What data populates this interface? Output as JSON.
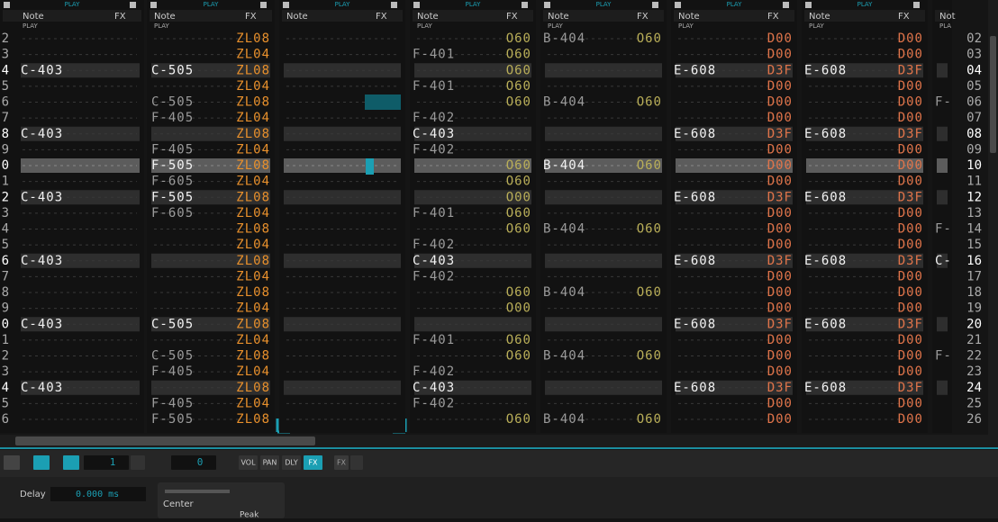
{
  "tracks": [
    {
      "play": "PLAY",
      "note": "Note",
      "fx": "FX",
      "sub": "PLAY"
    },
    {
      "play": "PLAY",
      "note": "Note",
      "fx": "FX",
      "sub": "PLAY"
    },
    {
      "play": "PLAY",
      "note": "Note",
      "fx": "FX"
    },
    {
      "play": "PLAY",
      "note": "Note",
      "fx": "FX",
      "sub": "PLAY"
    },
    {
      "play": "PLAY",
      "note": "Note",
      "fx": "FX",
      "sub": "PLAY"
    },
    {
      "play": "PLAY",
      "note": "Note",
      "fx": "FX",
      "sub": "PLAY"
    },
    {
      "play": "PLAY",
      "note": "Note",
      "fx": "FX",
      "sub": "PLAY"
    },
    {
      "note": "Not",
      "sub": "PLA"
    }
  ],
  "rows": [
    {
      "cut": "2",
      "num": "02",
      "cells": [
        null,
        null,
        "ZL08",
        null,
        "O60",
        "B-404",
        "O60",
        null,
        "D00",
        null,
        "D00",
        null
      ]
    },
    {
      "cut": "3",
      "num": "03",
      "cells": [
        null,
        null,
        "ZL04",
        "F-401",
        "O60",
        null,
        null,
        null,
        "D00",
        null,
        "D00",
        null
      ]
    },
    {
      "cut": "4",
      "num": "04",
      "cells": [
        "C-403",
        "C-505",
        "ZL08",
        null,
        "O60",
        null,
        null,
        "E-608",
        "D3F",
        "E-608",
        "D3F",
        null
      ]
    },
    {
      "cut": "5",
      "num": "05",
      "cells": [
        null,
        null,
        "ZL04",
        "F-401",
        "O60",
        null,
        null,
        null,
        "D00",
        null,
        "D00",
        null
      ]
    },
    {
      "cut": "6",
      "num": "06",
      "cells": [
        null,
        "C-505",
        "ZL08",
        null,
        "O60",
        "B-404",
        "O60",
        null,
        "D00",
        null,
        "D00",
        "F-"
      ]
    },
    {
      "cut": "7",
      "num": "07",
      "cells": [
        null,
        "F-405",
        "ZL04",
        "F-402",
        null,
        null,
        null,
        null,
        "D00",
        null,
        "D00",
        null
      ]
    },
    {
      "cut": "8",
      "num": "08",
      "cells": [
        "C-403",
        null,
        "ZL08",
        "C-403",
        null,
        null,
        null,
        "E-608",
        "D3F",
        "E-608",
        "D3F",
        null
      ]
    },
    {
      "cut": "9",
      "num": "09",
      "cells": [
        null,
        "F-405",
        "ZL04",
        "F-402",
        null,
        null,
        null,
        null,
        "D00",
        null,
        "D00",
        null
      ]
    },
    {
      "cut": "0",
      "num": "10",
      "cells": [
        null,
        "F-505",
        "ZL08",
        null,
        "O60",
        "B-404",
        "O60",
        null,
        "D00",
        null,
        "D00",
        null
      ]
    },
    {
      "cut": "1",
      "num": "11",
      "cells": [
        null,
        "F-605",
        "ZL04",
        null,
        "O60",
        null,
        null,
        null,
        "D00",
        null,
        "D00",
        null
      ]
    },
    {
      "cut": "2",
      "num": "12",
      "cells": [
        "C-403",
        "F-505",
        "ZL08",
        null,
        "O00",
        null,
        null,
        "E-608",
        "D3F",
        "E-608",
        "D3F",
        null
      ]
    },
    {
      "cut": "3",
      "num": "13",
      "cells": [
        null,
        "F-605",
        "ZL04",
        "F-401",
        "O60",
        null,
        null,
        null,
        "D00",
        null,
        "D00",
        null
      ]
    },
    {
      "cut": "4",
      "num": "14",
      "cells": [
        null,
        null,
        "ZL08",
        null,
        "O60",
        "B-404",
        "O60",
        null,
        "D00",
        null,
        "D00",
        "F-"
      ]
    },
    {
      "cut": "5",
      "num": "15",
      "cells": [
        null,
        null,
        "ZL04",
        "F-402",
        null,
        null,
        null,
        null,
        "D00",
        null,
        "D00",
        null
      ]
    },
    {
      "cut": "6",
      "num": "16",
      "cells": [
        "C-403",
        null,
        "ZL08",
        "C-403",
        null,
        null,
        null,
        "E-608",
        "D3F",
        "E-608",
        "D3F",
        "C-"
      ]
    },
    {
      "cut": "7",
      "num": "17",
      "cells": [
        null,
        null,
        "ZL04",
        "F-402",
        null,
        null,
        null,
        null,
        "D00",
        null,
        "D00",
        null
      ]
    },
    {
      "cut": "8",
      "num": "18",
      "cells": [
        null,
        null,
        "ZL08",
        null,
        "O60",
        "B-404",
        "O60",
        null,
        "D00",
        null,
        "D00",
        null
      ]
    },
    {
      "cut": "9",
      "num": "19",
      "cells": [
        null,
        null,
        "ZL04",
        null,
        "O00",
        null,
        null,
        null,
        "D00",
        null,
        "D00",
        null
      ]
    },
    {
      "cut": "0",
      "num": "20",
      "cells": [
        "C-403",
        "C-505",
        "ZL08",
        null,
        null,
        null,
        null,
        "E-608",
        "D3F",
        "E-608",
        "D3F",
        null
      ]
    },
    {
      "cut": "1",
      "num": "21",
      "cells": [
        null,
        null,
        "ZL04",
        "F-401",
        "O60",
        null,
        null,
        null,
        "D00",
        null,
        "D00",
        null
      ]
    },
    {
      "cut": "2",
      "num": "22",
      "cells": [
        null,
        "C-505",
        "ZL08",
        null,
        "O60",
        "B-404",
        "O60",
        null,
        "D00",
        null,
        "D00",
        "F-"
      ]
    },
    {
      "cut": "3",
      "num": "23",
      "cells": [
        null,
        "F-405",
        "ZL04",
        "F-402",
        null,
        null,
        null,
        null,
        "D00",
        null,
        "D00",
        null
      ]
    },
    {
      "cut": "4",
      "num": "24",
      "cells": [
        "C-403",
        null,
        "ZL08",
        "C-403",
        null,
        null,
        null,
        "E-608",
        "D3F",
        "E-608",
        "D3F",
        null
      ]
    },
    {
      "cut": "5",
      "num": "25",
      "cells": [
        null,
        "F-405",
        "ZL04",
        "F-402",
        null,
        null,
        null,
        null,
        "D00",
        null,
        "D00",
        null
      ]
    },
    {
      "cut": "6",
      "num": "26",
      "cells": [
        null,
        "F-505",
        "ZL08",
        null,
        "O60",
        "B-404",
        "O60",
        null,
        "D00",
        null,
        "D00",
        null
      ]
    }
  ],
  "toolbar": {
    "quant": "1",
    "step": "0",
    "vol": "VOL",
    "pan": "PAN",
    "dly": "DLY",
    "fx": "FX",
    "fx2": "FX"
  },
  "panel": {
    "delay": "Delay",
    "delay_value": "0.000 ms",
    "center": "Center",
    "peak": "Peak"
  }
}
